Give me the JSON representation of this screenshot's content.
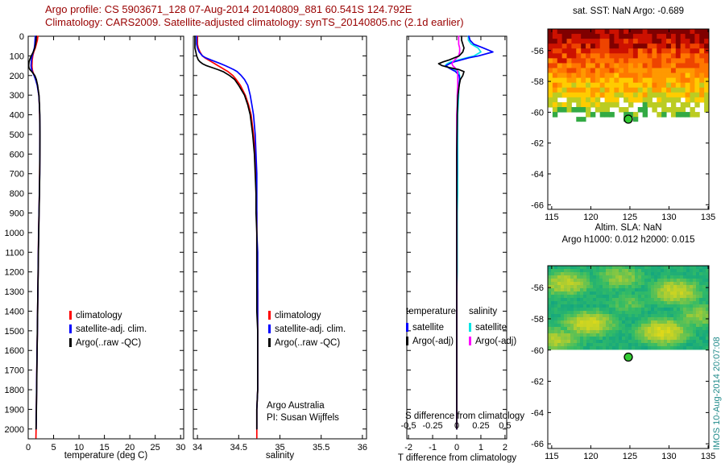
{
  "header": {
    "line1": "Argo profile: CS 5903671_128 07-Aug-2014 20140809_881 60.541S 124.792E",
    "line2": "Climatology: CARS2009. Satellite-adjusted climatology: synTS_20140805.nc (2.1d earlier)",
    "color": "#990000"
  },
  "credits": {
    "line1": "Argo Australia",
    "line2": "PI: Susan Wijffels"
  },
  "watermark": "IMOS 10-Aug-2014 20:07:08",
  "colors": {
    "climatology": "#ff0000",
    "satellite_clim": "#0000ff",
    "argo": "#000000",
    "sat_S": "#00e5e5",
    "argo_S": "#ff00ff",
    "marker_fill": "#33cc33",
    "watermark": "#1f8a8a"
  },
  "chart_data": [
    {
      "id": "temperature-profile",
      "type": "line",
      "xlabel": "temperature (deg C)",
      "xlim": [
        0,
        30.6
      ],
      "xticks": [
        0,
        5,
        10,
        15,
        20,
        25,
        30
      ],
      "ylim": [
        0,
        2050
      ],
      "yticks": [
        0,
        100,
        200,
        300,
        400,
        500,
        600,
        700,
        800,
        900,
        1000,
        1100,
        1200,
        1300,
        1400,
        1500,
        1600,
        1700,
        1800,
        1900,
        2000
      ],
      "depths": [
        0,
        20,
        40,
        60,
        80,
        100,
        110,
        120,
        130,
        140,
        150,
        160,
        170,
        180,
        200,
        220,
        250,
        300,
        350,
        400,
        500,
        600,
        700,
        800,
        900,
        1000,
        1100,
        1200,
        1300,
        1400,
        1500,
        1600,
        1700,
        1800,
        1900,
        2000,
        2045
      ],
      "series": [
        {
          "key": "climatology",
          "name": "climatology",
          "color": "#ff0000",
          "values": [
            1.9,
            1.8,
            1.6,
            1.4,
            1.1,
            0.9,
            0.85,
            0.8,
            0.78,
            0.76,
            0.75,
            0.78,
            0.82,
            0.9,
            1.2,
            1.5,
            1.8,
            2.1,
            2.2,
            2.25,
            2.3,
            2.28,
            2.25,
            2.2,
            2.12,
            2.05,
            2.0,
            1.95,
            1.9,
            1.85,
            1.8,
            1.75,
            1.7,
            1.65,
            1.6,
            1.55,
            1.53
          ]
        },
        {
          "key": "satellite-adj-clim",
          "name": "satellite-adj. clim.",
          "color": "#0000ff",
          "values": [
            1.4,
            1.35,
            1.3,
            1.2,
            1.0,
            0.8,
            0.7,
            0.65,
            0.6,
            0.58,
            0.56,
            0.6,
            0.68,
            0.8,
            1.15,
            1.45,
            1.78,
            2.1,
            2.2,
            2.26,
            2.31,
            2.29,
            2.26,
            2.21,
            2.13,
            2.06,
            2.0,
            1.95,
            1.9,
            1.85,
            1.8,
            1.75,
            1.7,
            1.65,
            1.6,
            1.55,
            null
          ]
        },
        {
          "key": "argo-raw-qc",
          "name": "Argo(..raw -QC)",
          "color": "#000000",
          "values": [
            1.6,
            1.55,
            1.45,
            1.3,
            1.0,
            0.6,
            0.45,
            0.3,
            0.18,
            0.12,
            0.1,
            0.15,
            0.35,
            0.7,
            1.3,
            1.6,
            1.85,
            2.12,
            2.22,
            2.28,
            2.32,
            2.3,
            2.27,
            2.22,
            2.14,
            2.07,
            2.01,
            1.96,
            1.91,
            1.86,
            1.81,
            1.76,
            1.71,
            1.66,
            1.61,
            1.56,
            null
          ]
        }
      ]
    },
    {
      "id": "salinity-profile",
      "type": "line",
      "xlabel": "salinity",
      "xlim": [
        33.95,
        36.05
      ],
      "xticks": [
        34,
        34.5,
        35,
        35.5,
        36
      ],
      "ylim": [
        0,
        2050
      ],
      "yticks": [
        0,
        100,
        200,
        300,
        400,
        500,
        600,
        700,
        800,
        900,
        1000,
        1100,
        1200,
        1300,
        1400,
        1500,
        1600,
        1700,
        1800,
        1900,
        2000
      ],
      "depths": [
        0,
        20,
        40,
        60,
        80,
        100,
        110,
        120,
        130,
        140,
        150,
        160,
        170,
        180,
        200,
        220,
        250,
        300,
        350,
        400,
        500,
        600,
        700,
        800,
        900,
        1000,
        1100,
        1200,
        1300,
        1400,
        1500,
        1600,
        1700,
        1800,
        1900,
        2000,
        2045
      ],
      "series": [
        {
          "key": "climatology",
          "name": "climatology",
          "color": "#ff0000",
          "values": [
            34.0,
            34.0,
            34.0,
            34.01,
            34.03,
            34.06,
            34.09,
            34.13,
            34.17,
            34.21,
            34.25,
            34.29,
            34.33,
            34.37,
            34.43,
            34.47,
            34.52,
            34.58,
            34.62,
            34.65,
            34.68,
            34.7,
            34.71,
            34.71,
            34.72,
            34.72,
            34.72,
            34.72,
            34.73,
            34.73,
            34.73,
            34.73,
            34.73,
            34.73,
            34.72,
            34.72,
            34.72
          ]
        },
        {
          "key": "satellite-adj-clim",
          "name": "satellite-adj. clim.",
          "color": "#0000ff",
          "values": [
            33.99,
            33.99,
            33.99,
            34.0,
            34.02,
            34.06,
            34.1,
            34.16,
            34.22,
            34.28,
            34.34,
            34.39,
            34.44,
            34.48,
            34.53,
            34.57,
            34.61,
            34.64,
            34.66,
            34.68,
            34.7,
            34.71,
            34.72,
            34.72,
            34.72,
            34.72,
            34.73,
            34.73,
            34.73,
            34.73,
            34.73,
            34.73,
            34.73,
            34.73,
            34.72,
            34.72,
            null
          ]
        },
        {
          "key": "argo-raw-qc",
          "name": "Argo(..raw -QC)",
          "color": "#000000",
          "values": [
            33.97,
            33.97,
            33.97,
            33.97,
            33.98,
            33.99,
            34.0,
            34.01,
            34.03,
            34.06,
            34.11,
            34.18,
            34.25,
            34.31,
            34.39,
            34.45,
            34.5,
            34.57,
            34.61,
            34.64,
            34.67,
            34.69,
            34.7,
            34.71,
            34.71,
            34.72,
            34.72,
            34.72,
            34.72,
            34.72,
            34.73,
            34.73,
            34.73,
            34.73,
            34.72,
            34.72,
            null
          ]
        }
      ]
    },
    {
      "id": "difference-profile",
      "type": "line",
      "xlabel": "T difference from climatology",
      "top_label": "S difference from climatology",
      "s_ticks": [
        -0.5,
        -0.25,
        0,
        0.25,
        0.5
      ],
      "xlim": [
        -2.07,
        2.07
      ],
      "xticks": [
        -2,
        -1,
        0,
        1,
        2
      ],
      "ylim": [
        0,
        2050
      ],
      "yticks": [
        0,
        100,
        200,
        300,
        400,
        500,
        600,
        700,
        800,
        900,
        1000,
        1100,
        1200,
        1300,
        1400,
        1500,
        1600,
        1700,
        1800,
        1900,
        2000
      ],
      "legend_headers": {
        "temperature": "temperature",
        "salinity": "salinity"
      },
      "depths": [
        0,
        20,
        40,
        60,
        80,
        100,
        110,
        120,
        130,
        140,
        150,
        160,
        170,
        180,
        200,
        220,
        250,
        300,
        350,
        400,
        500,
        600,
        700,
        800,
        900,
        1000,
        1100,
        1200,
        1300,
        1400,
        1500,
        1600,
        1700,
        1800,
        1900,
        2000
      ],
      "series": [
        {
          "key": "temp-satellite",
          "name": "satellite",
          "color": "#0000ff",
          "scale": 1,
          "values": [
            0.5,
            0.55,
            0.7,
            1.1,
            1.5,
            0.9,
            0.5,
            0.2,
            -0.1,
            -0.3,
            -0.45,
            -0.35,
            -0.2,
            -0.05,
            0.1,
            0.12,
            0.1,
            0.05,
            0.03,
            0.02,
            0.01,
            0.01,
            0.01,
            0,
            0,
            0,
            0,
            0,
            0,
            0,
            0,
            0,
            0,
            0,
            0,
            0
          ]
        },
        {
          "key": "temp-argo-adj",
          "name": "Argo(-adj)",
          "color": "#000000",
          "scale": 1,
          "values": [
            0.2,
            0.2,
            0.25,
            0.3,
            0.25,
            0.1,
            -0.1,
            -0.3,
            -0.55,
            -0.75,
            -0.6,
            -0.3,
            0.1,
            0.3,
            0.25,
            0.15,
            0.1,
            0.05,
            0.03,
            0.02,
            0.01,
            0,
            0,
            0,
            0,
            0,
            0,
            0,
            0,
            0,
            0,
            0,
            0,
            0,
            0,
            0
          ]
        },
        {
          "key": "sal-satellite",
          "name": "satellite",
          "color": "#00e5e5",
          "scale": 4,
          "values": [
            0.12,
            0.12,
            0.15,
            0.22,
            0.25,
            0.18,
            0.1,
            0.02,
            -0.06,
            -0.1,
            -0.12,
            -0.08,
            -0.02,
            0.02,
            0.03,
            0.03,
            0.02,
            0.02,
            0.015,
            0.01,
            0.01,
            0.01,
            0.01,
            0.01,
            0.005,
            0.005,
            0.005,
            0.005,
            0,
            0,
            0,
            0,
            0,
            0,
            0,
            0
          ]
        },
        {
          "key": "sal-argo-adj",
          "name": "Argo(-adj)",
          "color": "#ff00ff",
          "scale": 4,
          "values": [
            0.02,
            0.02,
            0.02,
            0.03,
            0.03,
            0.02,
            0,
            -0.02,
            -0.04,
            -0.05,
            -0.04,
            -0.02,
            0,
            0.01,
            0.01,
            0.01,
            0.01,
            0.005,
            0.005,
            0,
            0,
            0,
            0,
            0,
            0,
            0,
            0,
            0,
            0,
            0,
            0,
            0,
            0,
            0,
            0,
            0
          ]
        }
      ]
    },
    {
      "id": "sst-map",
      "type": "heatmap",
      "title": "sat. SST: NaN Argo: -0.689",
      "xlim": [
        114.5,
        135.1
      ],
      "ylim": [
        -66.3,
        -54.6
      ],
      "xticks": [
        115,
        120,
        125,
        130,
        135
      ],
      "yticks": [
        -56,
        -58,
        -60,
        -62,
        -64,
        -66
      ],
      "data_bottom_lat": -60.3,
      "marker": {
        "lon": 124.8,
        "lat": -60.45
      },
      "palette": [
        "#800000",
        "#cc1100",
        "#ee4400",
        "#ff7700",
        "#ff9900",
        "#ffcc00",
        "#bbcc22",
        "#33aa44"
      ]
    },
    {
      "id": "sla-map",
      "type": "heatmap",
      "title": "Altim. SLA: NaN",
      "subtitle": "Argo h1000: 0.012 h2000: 0.015",
      "xlim": [
        114.5,
        135.1
      ],
      "ylim": [
        -66.3,
        -54.6
      ],
      "xticks": [
        115,
        120,
        125,
        130,
        135
      ],
      "yticks": [
        -56,
        -58,
        -60,
        -62,
        -64,
        -66
      ],
      "data_bottom_lat": -60.1,
      "marker": {
        "lon": 124.8,
        "lat": -60.45
      },
      "palette_stops": [
        "#00998f",
        "#33bb66",
        "#aacc33",
        "#eedd11"
      ]
    }
  ]
}
